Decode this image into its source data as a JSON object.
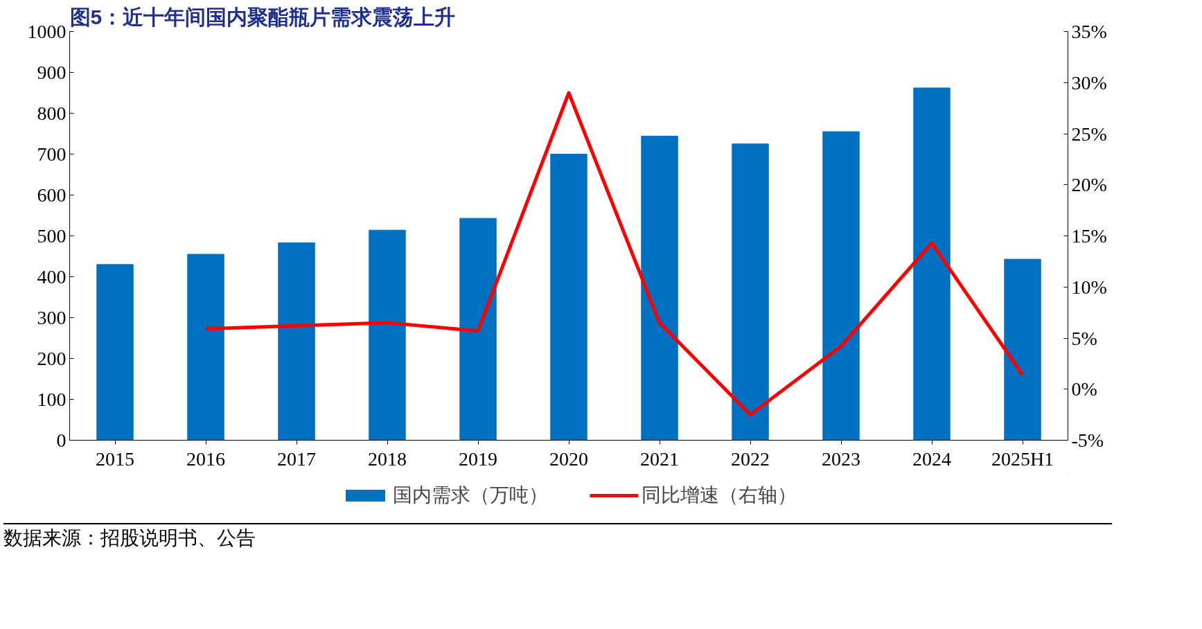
{
  "chart_data": {
    "type": "bar",
    "title": "图5：近十年间国内聚酯瓶片需求震荡上升",
    "categories": [
      "2015",
      "2016",
      "2017",
      "2018",
      "2019",
      "2020",
      "2021",
      "2022",
      "2023",
      "2024",
      "2025H1"
    ],
    "series": [
      {
        "name": "国内需求（万吨）",
        "color": "#0070c0",
        "values": [
          430,
          455,
          483,
          514,
          543,
          700,
          744,
          725,
          755,
          862,
          443
        ]
      },
      {
        "name": "同比增速（右轴）",
        "type": "line",
        "axis": "y2",
        "color": "#ff0000",
        "values": [
          null,
          5.9,
          6.2,
          6.5,
          5.7,
          29.0,
          6.5,
          -2.5,
          4.2,
          14.3,
          1.4
        ]
      }
    ],
    "ylim": [
      0,
      1000
    ],
    "yticks": [
      0,
      100,
      200,
      300,
      400,
      500,
      600,
      700,
      800,
      900,
      1000
    ],
    "y2lim": [
      -5,
      35
    ],
    "y2ticks": [
      {
        "value": -5,
        "label": "-5%"
      },
      {
        "value": 0,
        "label": "0%"
      },
      {
        "value": 5,
        "label": "5%"
      },
      {
        "value": 10,
        "label": "10%"
      },
      {
        "value": 15,
        "label": "15%"
      },
      {
        "value": 20,
        "label": "20%"
      },
      {
        "value": 25,
        "label": "25%"
      },
      {
        "value": 30,
        "label": "30%"
      },
      {
        "value": 35,
        "label": "35%"
      }
    ],
    "grid": false,
    "legend": "bottom",
    "line_style": "solid",
    "marker": "none",
    "annotations": [
      "数据来源：招股说明书、公告"
    ]
  }
}
